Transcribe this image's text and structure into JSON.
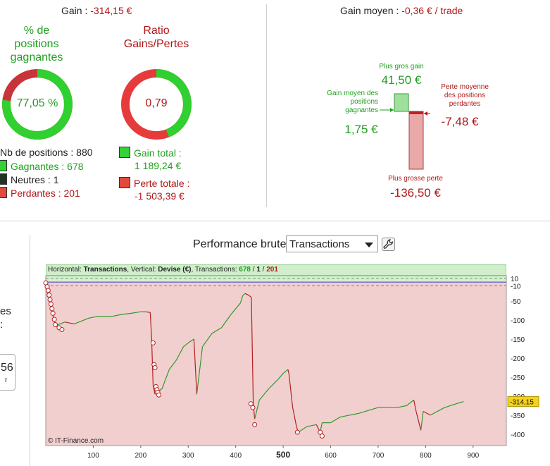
{
  "gain": {
    "label": "Gain :",
    "value": "-314,15 €"
  },
  "gain_moyen": {
    "label": "Gain moyen :",
    "value": "-0,36 € / trade"
  },
  "pct_positions": {
    "title": [
      "% de",
      "positions",
      "gagnantes"
    ],
    "value": "77,05 %",
    "fraction": 0.7705
  },
  "ratio": {
    "title": [
      "Ratio",
      "Gains/Pertes"
    ],
    "value": "0,79",
    "fraction": 0.4415
  },
  "positions": {
    "total": "Nb de positions : 880",
    "gagnantes": "Gagnantes : 678",
    "neutres": "Neutres : 1",
    "perdantes": "Perdantes : 201"
  },
  "totals": {
    "gain_label": "Gain total :",
    "gain_value": "1 189,24 €",
    "perte_label": "Perte totale :",
    "perte_value": "-1 503,39 €"
  },
  "summary": {
    "plus_gros_gain_label": "Plus gros gain",
    "plus_gros_gain_value": "41,50 €",
    "gain_moyen_label": [
      "Gain moyen des",
      "positions",
      "gagnantes"
    ],
    "gain_moyen_value": "1,75 €",
    "perte_moyenne_label": [
      "Perte moyenne",
      "des positions",
      "perdantes"
    ],
    "perte_moyenne_value": "-7,48 €",
    "plus_grosse_perte_label": "Plus grosse perte",
    "plus_grosse_perte_value": "-136,50 €"
  },
  "left_fragments": {
    "a": "es",
    "b": ":",
    "c": "56",
    "d": "r"
  },
  "performance": {
    "label": "Performance brute",
    "select_value": "Transactions"
  },
  "legend": {
    "h_label": "Horizontal:",
    "h_value": "Transactions",
    "v_label": ", Vertical:",
    "v_value": "Devise (€)",
    "t_label": ", Transactions:",
    "t_win": "678",
    "t_sep1": " / ",
    "t_neutral": "1",
    "t_sep2": " / ",
    "t_loss": "201"
  },
  "watermark": "© IT-Finance.com",
  "current_value": "-314,15",
  "colors": {
    "green": "#1f9f1f",
    "red": "#b01818",
    "loss_bg": "#f2cfcf",
    "gain_bg": "#d4f0cf"
  },
  "chart_data": {
    "type": "line",
    "xlabel": "",
    "ylabel": "",
    "xlim": [
      0,
      970
    ],
    "ylim": [
      -430,
      17
    ],
    "x_ticks": [
      100,
      200,
      300,
      400,
      500,
      600,
      700,
      800,
      900
    ],
    "y_ticks": [
      10,
      -10,
      -50,
      -100,
      -150,
      -200,
      -250,
      -300,
      -350,
      -400
    ],
    "x": [
      0,
      2,
      5,
      8,
      12,
      20,
      40,
      60,
      90,
      110,
      140,
      160,
      180,
      200,
      210,
      220,
      223,
      226,
      230,
      235,
      245,
      260,
      275,
      290,
      300,
      312,
      318,
      330,
      350,
      370,
      390,
      410,
      415,
      420,
      428,
      433,
      437,
      440,
      450,
      470,
      490,
      500,
      510,
      512,
      520,
      528,
      532,
      550,
      570,
      578,
      582,
      600,
      620,
      660,
      700,
      740,
      760,
      775,
      780,
      790,
      795,
      810,
      840,
      870,
      880
    ],
    "y": [
      0,
      -10,
      -20,
      -40,
      -70,
      -115,
      -105,
      -110,
      -95,
      -90,
      -90,
      -85,
      -82,
      -78,
      -78,
      -80,
      -150,
      -270,
      -295,
      -290,
      -280,
      -230,
      -205,
      -170,
      -160,
      -150,
      -295,
      -170,
      -135,
      -120,
      -85,
      -55,
      -35,
      -30,
      -35,
      -40,
      -320,
      -360,
      -310,
      -280,
      -255,
      -240,
      -230,
      -240,
      -330,
      -380,
      -395,
      -380,
      -375,
      -395,
      -370,
      -370,
      -355,
      -345,
      -330,
      -330,
      -325,
      -310,
      -340,
      -390,
      -340,
      -350,
      -330,
      -318,
      -314.15
    ],
    "loss_markers": [
      [
        0,
        -2
      ],
      [
        3,
        -12
      ],
      [
        5,
        -22
      ],
      [
        7,
        -34
      ],
      [
        9,
        -46
      ],
      [
        11,
        -58
      ],
      [
        13,
        -70
      ],
      [
        15,
        -82
      ],
      [
        18,
        -98
      ],
      [
        20,
        -112
      ],
      [
        28,
        -120
      ],
      [
        34,
        -125
      ],
      [
        226,
        -160
      ],
      [
        228,
        -217
      ],
      [
        230,
        -225
      ],
      [
        232,
        -275
      ],
      [
        234,
        -283
      ],
      [
        236,
        -290
      ],
      [
        238,
        -297
      ],
      [
        432,
        -320
      ],
      [
        436,
        -330
      ],
      [
        440,
        -375
      ],
      [
        530,
        -395
      ],
      [
        578,
        -395
      ],
      [
        582,
        -405
      ]
    ]
  }
}
